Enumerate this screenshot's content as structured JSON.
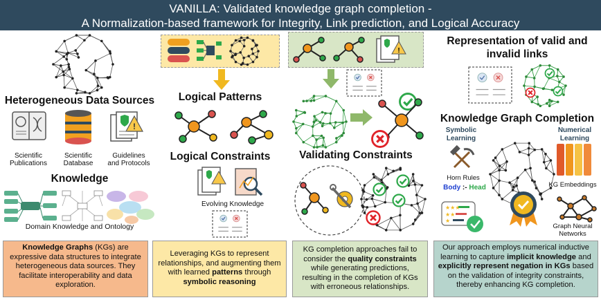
{
  "header": {
    "line1": "VANILLA: Validated knowledge graph completion -",
    "line2": "A Normalization-based framework for Integrity, Link prediction, and Logical Accuracy"
  },
  "col1": {
    "heading_sources": "Heterogeneous Data Sources",
    "sources": [
      {
        "line1": "Scientific",
        "line2": "Publications"
      },
      {
        "line1": "Scientific",
        "line2": "Database"
      },
      {
        "line1": "Guidelines",
        "line2": "and Protocols"
      }
    ],
    "heading_knowledge": "Knowledge",
    "caption_ontology": "Domain Knowledge and Ontology",
    "box": {
      "bold1": "Knowledge Graphs",
      "text1": " (KGs) are expressive data structures to integrate heterogeneous data sources. They facilitate interoperability and data exploration."
    }
  },
  "col2": {
    "heading_patterns": "Logical Patterns",
    "heading_constraints": "Logical Constraints",
    "caption_evolving": "Evolving Knowledge",
    "box": {
      "text1": "Leveraging KGs to represent relationships, and augmenting them with learned ",
      "bold1": "patterns",
      "text2": " through ",
      "bold2": "symbolic reasoning"
    }
  },
  "col3": {
    "heading_validating": "Validating Constraints",
    "box": {
      "text1": "KG completion approaches fail to consider the ",
      "bold1": "quality constraints",
      "text2": " while generating predictions, resulting in the completion of KGs with erroneous relationships."
    }
  },
  "col4": {
    "heading_representation_l1": "Representation of valid and",
    "heading_representation_l2": "invalid links",
    "heading_completion": "Knowledge Graph Completion",
    "symbolic_l1": "Symbolic",
    "symbolic_l2": "Learning",
    "numerical_l1": "Numerical",
    "numerical_l2": "Learning",
    "horn_rules": "Horn Rules",
    "body": "Body",
    "rule_sep": " :- ",
    "head": "Head",
    "kg_embeddings": "KG Embeddings",
    "gnn_l1": "Graph Neural",
    "gnn_l2": "Networks",
    "box": {
      "text1": "Our approach employs numerical inductive learning to capture ",
      "bold1": "implicit knowledge",
      "text2": " and ",
      "bold2": "explicitly represent negation in KGs",
      "text3": " based on the validation of integrity constraints, thereby enhancing KG completion."
    }
  },
  "colors": {
    "header_bg": "#2f4a5e",
    "box1_bg": "#f6b98c",
    "box2_bg": "#fde8a6",
    "box3_bg": "#d8e6c6",
    "box4_bg": "#b6d4cc",
    "valid_green": "#2ea84a",
    "invalid_red": "#e0242a",
    "node_orange": "#f0961e",
    "body_blue": "#1e3fd0",
    "head_green": "#2ea84a"
  }
}
